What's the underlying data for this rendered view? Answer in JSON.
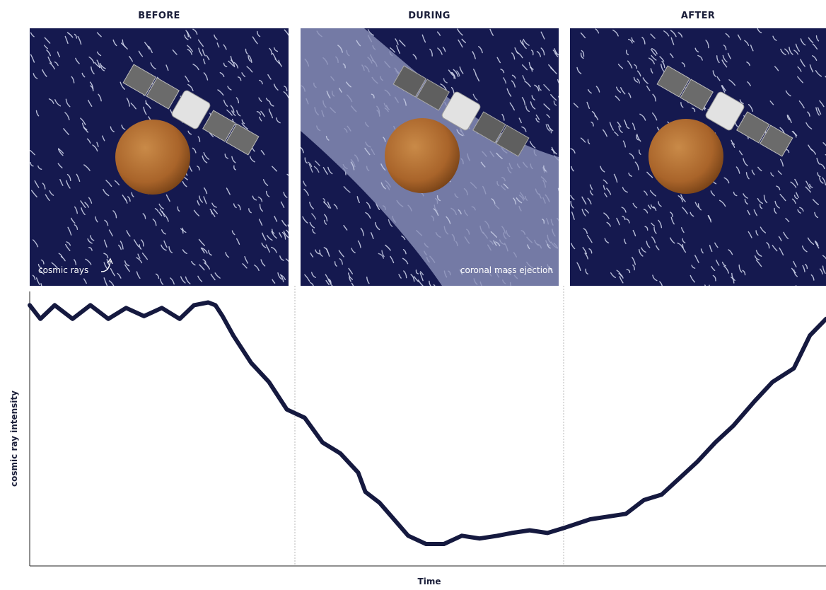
{
  "panels": [
    {
      "title": "BEFORE",
      "caption": "cosmic rays",
      "cme": false
    },
    {
      "title": "DURING",
      "caption": "coronal mass ejection",
      "cme": true
    },
    {
      "title": "AFTER",
      "caption": "",
      "cme": false
    }
  ],
  "colors": {
    "space": "#15194f",
    "cme_band": "#8a90b8",
    "planet": "#b06a2c",
    "curve": "#15193f",
    "solar_panel": "#6b6b6b",
    "spacecraft_body": "#e2e2e2"
  },
  "icons": {
    "planet": "planet-icon",
    "spacecraft": "spacecraft-icon",
    "arrow": "curved-arrow-icon"
  },
  "chart_data": {
    "type": "line",
    "xlabel": "Time",
    "ylabel": "cosmic ray intensity",
    "x": [
      0,
      6,
      14,
      24,
      34,
      44,
      54,
      64,
      74,
      84,
      92,
      100,
      104,
      108,
      114,
      124,
      134,
      144,
      154,
      164,
      174,
      184,
      188,
      196,
      204,
      212,
      222,
      232,
      242,
      252,
      262,
      270,
      280,
      290,
      300,
      314,
      324,
      334,
      344,
      354,
      364,
      374,
      384,
      394,
      406,
      416,
      428,
      437,
      446
    ],
    "values": [
      95,
      90,
      95,
      90,
      95,
      90,
      94,
      91,
      94,
      90,
      95,
      96,
      95,
      91,
      84,
      74,
      67,
      57,
      54,
      45,
      41,
      34,
      27,
      23,
      17,
      11,
      8,
      8,
      11,
      10,
      11,
      12,
      13,
      12,
      14,
      17,
      18,
      19,
      24,
      26,
      32,
      38,
      45,
      51,
      60,
      67,
      72,
      84,
      90
    ],
    "xlim": [
      0,
      446
    ],
    "ylim": [
      0,
      100
    ],
    "grid": false
  }
}
